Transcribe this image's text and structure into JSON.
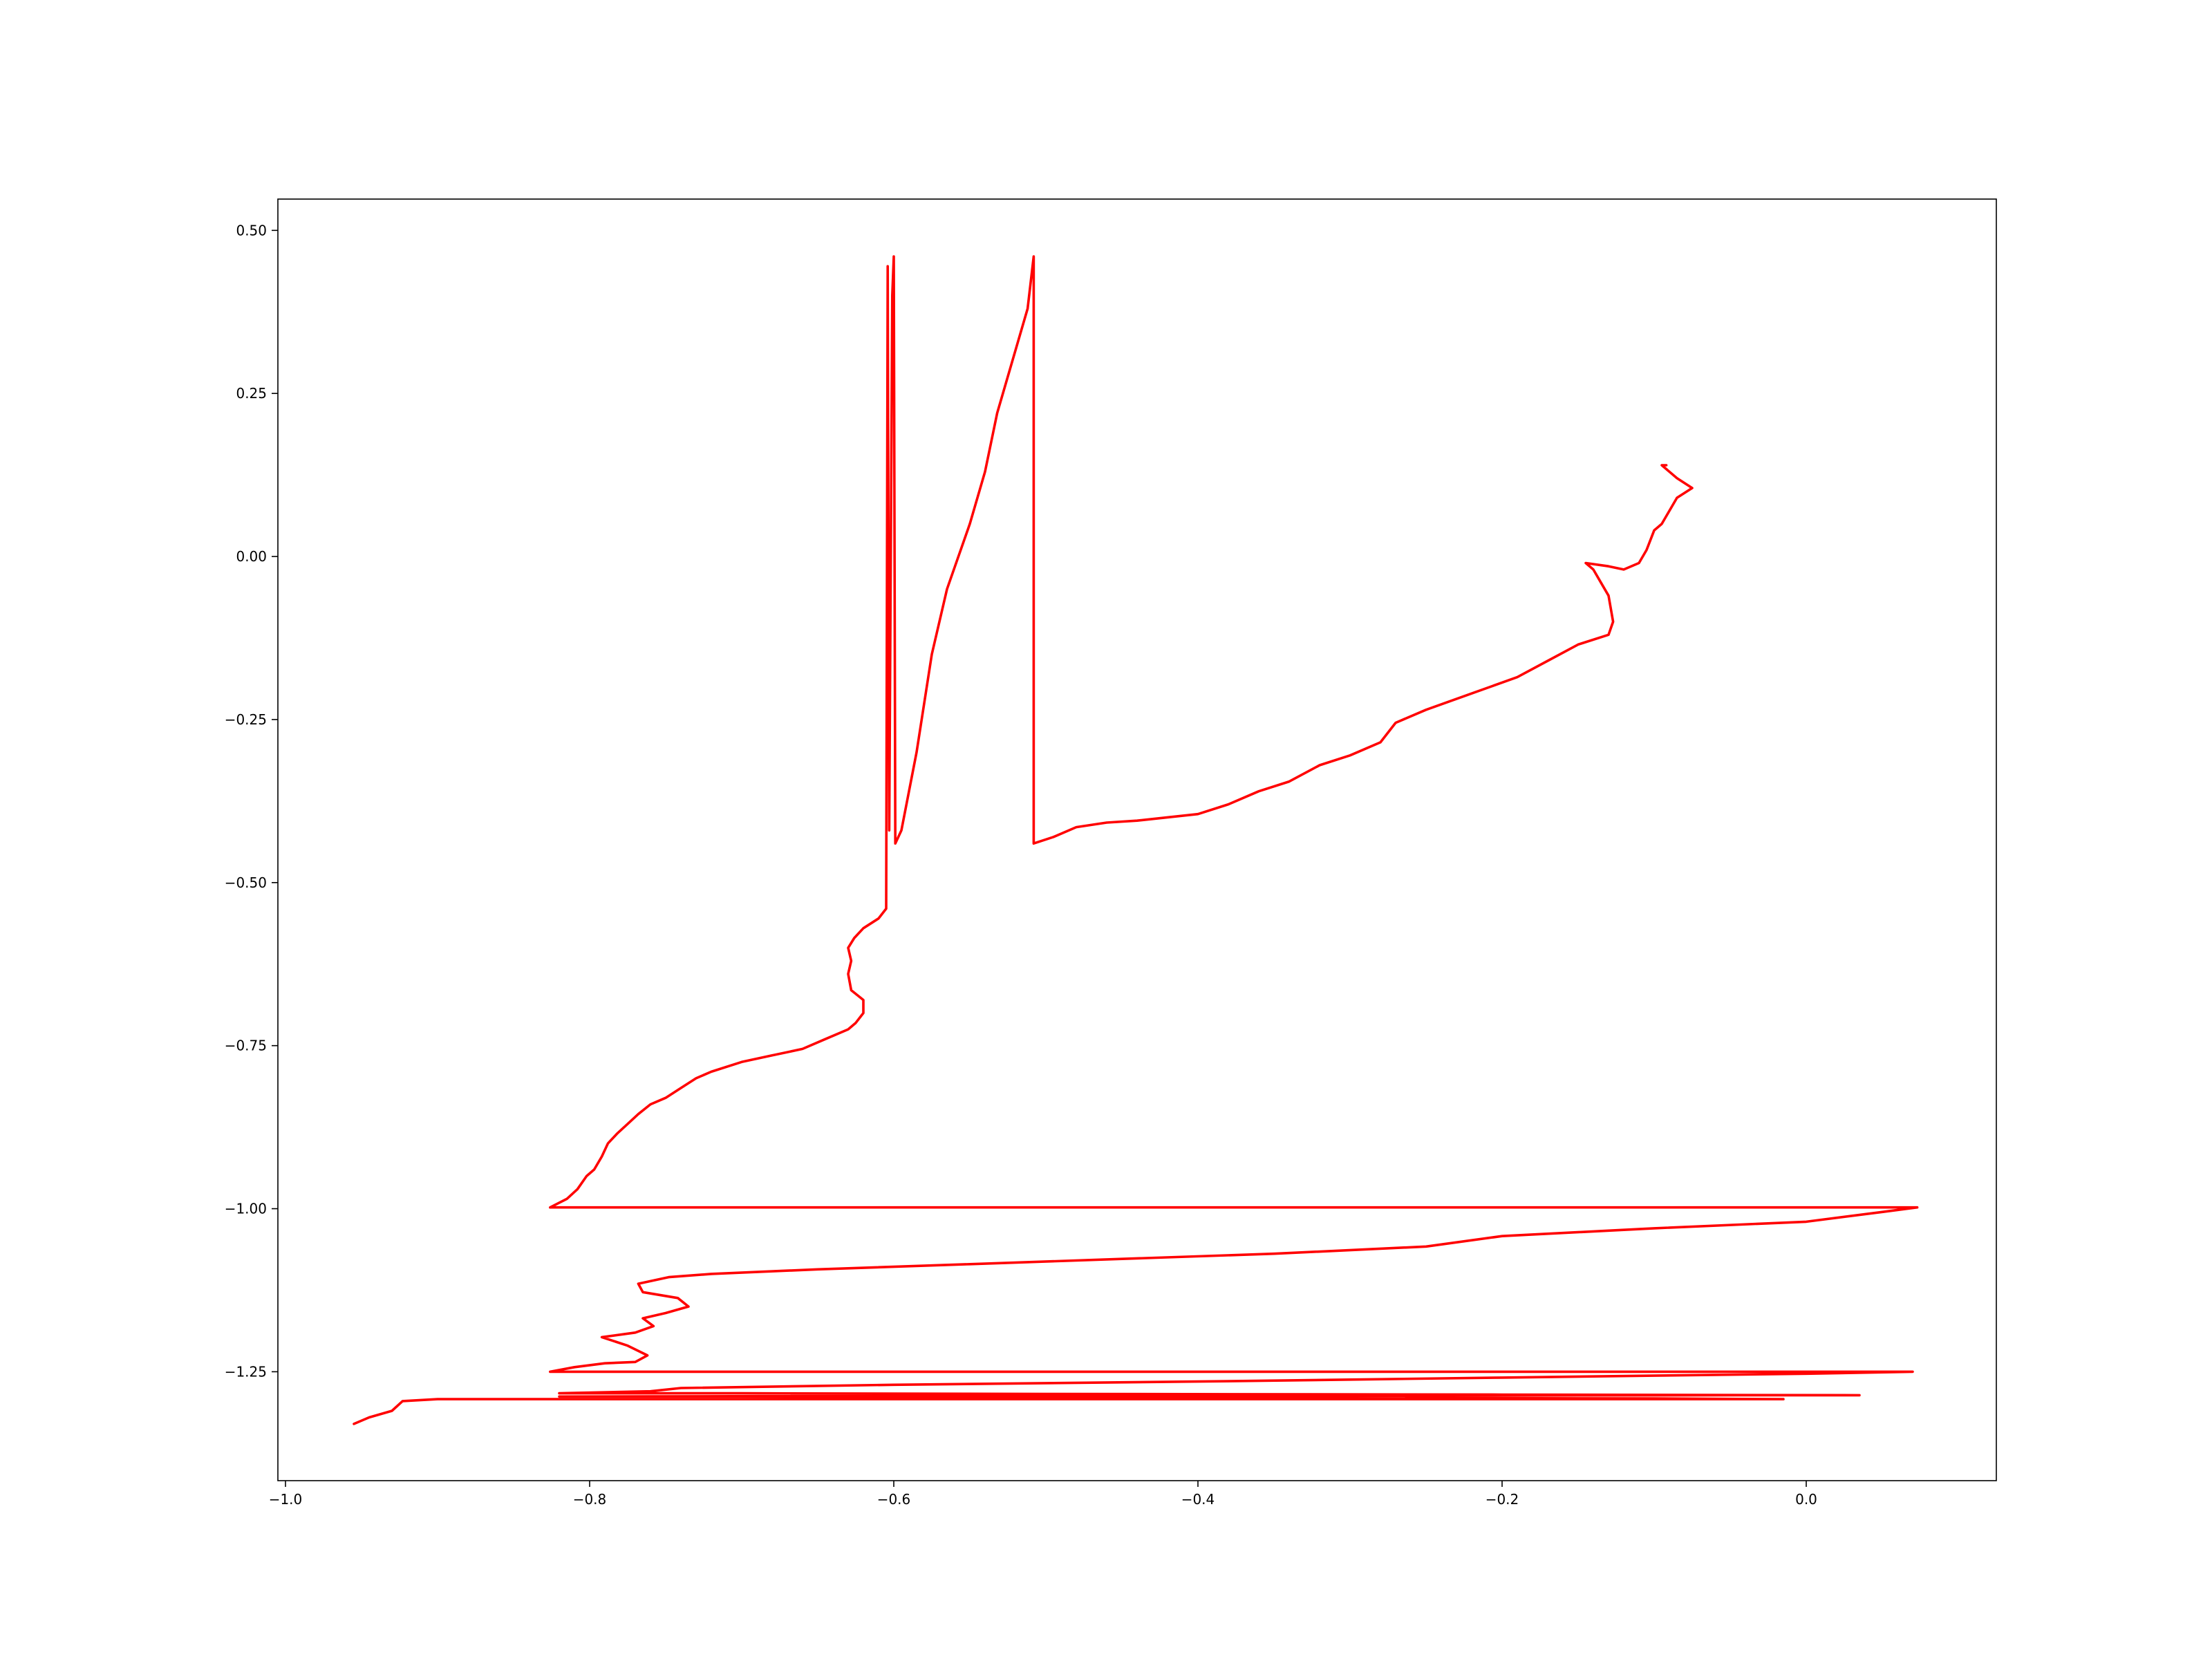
{
  "chart_data": {
    "type": "line",
    "title": "",
    "xlabel": "",
    "ylabel": "",
    "xlim": [
      -1.005,
      0.125
    ],
    "ylim": [
      -1.417,
      0.548
    ],
    "grid": false,
    "legend": "none",
    "x_ticks": [
      {
        "value": -1.0,
        "label": "−1.0"
      },
      {
        "value": -0.8,
        "label": "−0.8"
      },
      {
        "value": -0.6,
        "label": "−0.6"
      },
      {
        "value": -0.4,
        "label": "−0.4"
      },
      {
        "value": -0.2,
        "label": "−0.2"
      },
      {
        "value": 0.0,
        "label": "0.0"
      }
    ],
    "y_ticks": [
      {
        "value": 0.5,
        "label": "0.50"
      },
      {
        "value": 0.25,
        "label": "0.25"
      },
      {
        "value": 0.0,
        "label": "0.00"
      },
      {
        "value": -0.25,
        "label": "−0.25"
      },
      {
        "value": -0.5,
        "label": "−0.50"
      },
      {
        "value": -0.75,
        "label": "−0.75"
      },
      {
        "value": -1.0,
        "label": "−1.00"
      },
      {
        "value": -1.25,
        "label": "−1.25"
      }
    ],
    "series": [
      {
        "color": "#ff0000",
        "points": [
          [
            -0.955,
            -1.33
          ],
          [
            -0.945,
            -1.32
          ],
          [
            -0.93,
            -1.31
          ],
          [
            -0.923,
            -1.295
          ],
          [
            -0.9,
            -1.292
          ],
          [
            -0.82,
            -1.292
          ],
          [
            -0.7,
            -1.292
          ],
          [
            -0.5,
            -1.292
          ],
          [
            -0.3,
            -1.292
          ],
          [
            -0.1,
            -1.292
          ],
          [
            -0.015,
            -1.292
          ],
          [
            -0.1,
            -1.291
          ],
          [
            -0.3,
            -1.29
          ],
          [
            -0.5,
            -1.289
          ],
          [
            -0.7,
            -1.288
          ],
          [
            -0.82,
            -1.288
          ],
          [
            -0.6,
            -1.287
          ],
          [
            -0.3,
            -1.287
          ],
          [
            -0.05,
            -1.286
          ],
          [
            0.035,
            -1.286
          ],
          [
            -0.2,
            -1.285
          ],
          [
            -0.5,
            -1.284
          ],
          [
            -0.7,
            -1.283
          ],
          [
            -0.82,
            -1.283
          ],
          [
            -0.76,
            -1.28
          ],
          [
            -0.74,
            -1.275
          ],
          [
            -0.6,
            -1.27
          ],
          [
            -0.4,
            -1.265
          ],
          [
            -0.3,
            -1.262
          ],
          [
            -0.2,
            -1.259
          ],
          [
            -0.1,
            -1.256
          ],
          [
            0.0,
            -1.253
          ],
          [
            0.07,
            -1.25
          ],
          [
            -0.3,
            -1.25
          ],
          [
            -0.6,
            -1.25
          ],
          [
            -0.826,
            -1.25
          ],
          [
            -0.81,
            -1.243
          ],
          [
            -0.79,
            -1.237
          ],
          [
            -0.77,
            -1.235
          ],
          [
            -0.762,
            -1.225
          ],
          [
            -0.775,
            -1.21
          ],
          [
            -0.792,
            -1.197
          ],
          [
            -0.77,
            -1.19
          ],
          [
            -0.758,
            -1.18
          ],
          [
            -0.765,
            -1.168
          ],
          [
            -0.75,
            -1.16
          ],
          [
            -0.735,
            -1.15
          ],
          [
            -0.742,
            -1.137
          ],
          [
            -0.765,
            -1.128
          ],
          [
            -0.768,
            -1.115
          ],
          [
            -0.748,
            -1.105
          ],
          [
            -0.72,
            -1.1
          ],
          [
            -0.65,
            -1.093
          ],
          [
            -0.55,
            -1.085
          ],
          [
            -0.45,
            -1.077
          ],
          [
            -0.35,
            -1.069
          ],
          [
            -0.25,
            -1.058
          ],
          [
            -0.2,
            -1.042
          ],
          [
            -0.1,
            -1.03
          ],
          [
            0.0,
            -1.02
          ],
          [
            0.05,
            -1.005
          ],
          [
            0.073,
            -0.998
          ],
          [
            -0.4,
            -0.998
          ],
          [
            -0.826,
            -0.998
          ],
          [
            -0.815,
            -0.985
          ],
          [
            -0.808,
            -0.97
          ],
          [
            -0.802,
            -0.95
          ],
          [
            -0.797,
            -0.94
          ],
          [
            -0.792,
            -0.92
          ],
          [
            -0.788,
            -0.9
          ],
          [
            -0.782,
            -0.885
          ],
          [
            -0.775,
            -0.87
          ],
          [
            -0.768,
            -0.855
          ],
          [
            -0.76,
            -0.84
          ],
          [
            -0.75,
            -0.83
          ],
          [
            -0.74,
            -0.815
          ],
          [
            -0.73,
            -0.8
          ],
          [
            -0.72,
            -0.79
          ],
          [
            -0.7,
            -0.775
          ],
          [
            -0.68,
            -0.765
          ],
          [
            -0.66,
            -0.755
          ],
          [
            -0.645,
            -0.74
          ],
          [
            -0.63,
            -0.725
          ],
          [
            -0.625,
            -0.715
          ],
          [
            -0.62,
            -0.7
          ],
          [
            -0.62,
            -0.68
          ],
          [
            -0.628,
            -0.665
          ],
          [
            -0.63,
            -0.64
          ],
          [
            -0.628,
            -0.62
          ],
          [
            -0.63,
            -0.6
          ],
          [
            -0.626,
            -0.585
          ],
          [
            -0.62,
            -0.57
          ],
          [
            -0.61,
            -0.555
          ],
          [
            -0.605,
            -0.54
          ],
          [
            -0.604,
            0.445
          ],
          [
            -0.603,
            -0.42
          ],
          [
            -0.601,
            0.4
          ],
          [
            -0.6,
            0.46
          ],
          [
            -0.599,
            -0.44
          ],
          [
            -0.595,
            -0.42
          ],
          [
            -0.585,
            -0.3
          ],
          [
            -0.575,
            -0.15
          ],
          [
            -0.565,
            -0.05
          ],
          [
            -0.55,
            0.05
          ],
          [
            -0.54,
            0.13
          ],
          [
            -0.532,
            0.22
          ],
          [
            -0.522,
            0.3
          ],
          [
            -0.512,
            0.38
          ],
          [
            -0.508,
            0.46
          ],
          [
            -0.508,
            -0.44
          ],
          [
            -0.495,
            -0.43
          ],
          [
            -0.48,
            -0.415
          ],
          [
            -0.46,
            -0.408
          ],
          [
            -0.44,
            -0.405
          ],
          [
            -0.42,
            -0.4
          ],
          [
            -0.4,
            -0.395
          ],
          [
            -0.38,
            -0.38
          ],
          [
            -0.36,
            -0.36
          ],
          [
            -0.34,
            -0.345
          ],
          [
            -0.32,
            -0.32
          ],
          [
            -0.3,
            -0.305
          ],
          [
            -0.28,
            -0.285
          ],
          [
            -0.27,
            -0.255
          ],
          [
            -0.25,
            -0.235
          ],
          [
            -0.22,
            -0.21
          ],
          [
            -0.19,
            -0.185
          ],
          [
            -0.17,
            -0.16
          ],
          [
            -0.15,
            -0.135
          ],
          [
            -0.13,
            -0.12
          ],
          [
            -0.127,
            -0.1
          ],
          [
            -0.13,
            -0.06
          ],
          [
            -0.135,
            -0.04
          ],
          [
            -0.14,
            -0.02
          ],
          [
            -0.145,
            -0.01
          ],
          [
            -0.13,
            -0.015
          ],
          [
            -0.12,
            -0.02
          ],
          [
            -0.11,
            -0.01
          ],
          [
            -0.105,
            0.01
          ],
          [
            -0.1,
            0.04
          ],
          [
            -0.095,
            0.05
          ],
          [
            -0.09,
            0.07
          ],
          [
            -0.085,
            0.09
          ],
          [
            -0.075,
            0.105
          ],
          [
            -0.085,
            0.12
          ],
          [
            -0.095,
            0.14
          ],
          [
            -0.092,
            0.14
          ]
        ]
      }
    ]
  }
}
